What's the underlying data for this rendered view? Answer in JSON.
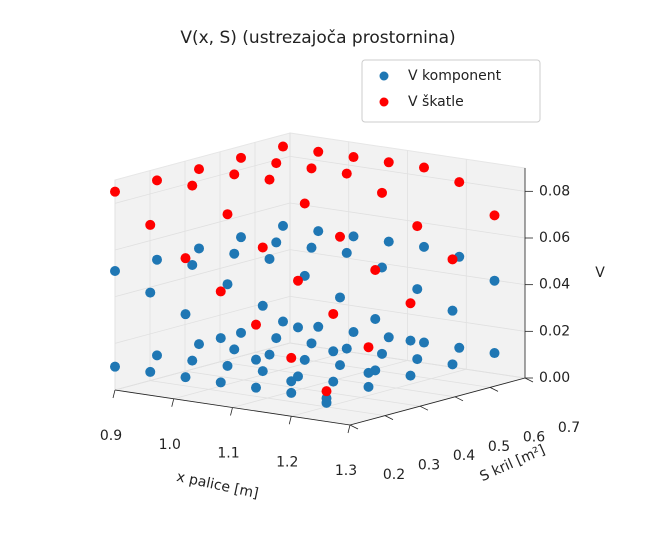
{
  "chart_data": {
    "type": "scatter3d",
    "title": "V(x, S) (ustrezajoča prostornina)",
    "xlabel": "x palice [m]",
    "ylabel": "S kril [m²]",
    "zlabel": "V",
    "xlim": [
      0.9,
      1.3
    ],
    "ylim": [
      0.2,
      0.7
    ],
    "zlim": [
      0,
      0.09
    ],
    "xticks": [
      0.9,
      {
        "value": 1,
        "label": "1.0"
      },
      1.1,
      1.2,
      1.3
    ],
    "yticks": [
      0.2,
      0.3,
      0.4,
      0.5,
      0.6,
      0.7
    ],
    "zticks": [
      {
        "value": 0,
        "label": "0.00"
      },
      {
        "value": 0.02,
        "label": "0.02"
      },
      {
        "value": 0.04,
        "label": "0.04"
      },
      {
        "value": 0.06,
        "label": "0.06"
      },
      {
        "value": 0.08,
        "label": "0.08"
      }
    ],
    "grid": true,
    "legend": "upper right",
    "series": [
      {
        "name": "V komponent",
        "color": "#1f77b4",
        "x": [
          0.9,
          0.9,
          0.9,
          0.9,
          0.9,
          0.96,
          0.96,
          0.96,
          0.96,
          0.96,
          1.02,
          1.02,
          1.02,
          1.02,
          1.02,
          1.08,
          1.08,
          1.08,
          1.08,
          1.08,
          1.14,
          1.14,
          1.14,
          1.14,
          1.14,
          1.2,
          1.2,
          1.2,
          1.2,
          1.2,
          1.26,
          1.26,
          1.26,
          1.26,
          1.26,
          0.9,
          0.9,
          0.9,
          0.9,
          0.9,
          0.96,
          0.96,
          0.96,
          0.96,
          0.96,
          1.02,
          1.02,
          1.02,
          1.02,
          1.02,
          1.08,
          1.08,
          1.08,
          1.08,
          1.08,
          1.14,
          1.14,
          1.14,
          1.14,
          1.14,
          1.2,
          1.2,
          1.2,
          1.2,
          1.2,
          1.26,
          1.26,
          1.26,
          1.26,
          1.26
        ],
        "y": [
          0.2,
          0.32,
          0.44,
          0.56,
          0.68,
          0.2,
          0.32,
          0.44,
          0.56,
          0.68,
          0.2,
          0.32,
          0.44,
          0.56,
          0.68,
          0.2,
          0.32,
          0.44,
          0.56,
          0.68,
          0.2,
          0.32,
          0.44,
          0.56,
          0.68,
          0.2,
          0.32,
          0.44,
          0.56,
          0.68,
          0.2,
          0.32,
          0.44,
          0.56,
          0.68,
          0.2,
          0.32,
          0.44,
          0.56,
          0.68,
          0.2,
          0.32,
          0.44,
          0.56,
          0.68,
          0.2,
          0.32,
          0.44,
          0.56,
          0.68,
          0.2,
          0.32,
          0.44,
          0.56,
          0.68,
          0.2,
          0.32,
          0.44,
          0.56,
          0.68,
          0.2,
          0.32,
          0.44,
          0.56,
          0.68,
          0.2,
          0.32,
          0.44,
          0.56,
          0.68
        ],
        "z": [
          0.01,
          0.01,
          0.01,
          0.01,
          0.01,
          0.01,
          0.01,
          0.01,
          0.01,
          0.01,
          0.01,
          0.01,
          0.01,
          0.01,
          0.01,
          0.01,
          0.01,
          0.01,
          0.01,
          0.01,
          0.01,
          0.01,
          0.01,
          0.01,
          0.01,
          0.01,
          0.01,
          0.01,
          0.01,
          0.01,
          0.01,
          0.01,
          0.01,
          0.01,
          0.01,
          0.051,
          0.051,
          0.051,
          0.051,
          0.051,
          0.044,
          0.051,
          0.051,
          0.051,
          0.051,
          0.037,
          0.045,
          0.051,
          0.051,
          0.051,
          0.029,
          0.038,
          0.046,
          0.051,
          0.051,
          0.022,
          0.031,
          0.039,
          0.047,
          0.051,
          0.015,
          0.023,
          0.032,
          0.04,
          0.049,
          0.008,
          0.016,
          0.025,
          0.033,
          0.041
        ]
      },
      {
        "name": "V škatle",
        "color": "#ff0000",
        "x": [
          0.9,
          0.9,
          0.9,
          0.9,
          0.9,
          0.96,
          0.96,
          0.96,
          0.96,
          0.96,
          1.02,
          1.02,
          1.02,
          1.02,
          1.02,
          1.08,
          1.08,
          1.08,
          1.08,
          1.08,
          1.14,
          1.14,
          1.14,
          1.14,
          1.14,
          1.2,
          1.2,
          1.2,
          1.2,
          1.2,
          1.26,
          1.26,
          1.26,
          1.26,
          1.26
        ],
        "y": [
          0.2,
          0.32,
          0.44,
          0.56,
          0.68,
          0.2,
          0.32,
          0.44,
          0.56,
          0.68,
          0.2,
          0.32,
          0.44,
          0.56,
          0.68,
          0.2,
          0.32,
          0.44,
          0.56,
          0.68,
          0.2,
          0.32,
          0.44,
          0.56,
          0.68,
          0.2,
          0.32,
          0.44,
          0.56,
          0.68,
          0.2,
          0.32,
          0.44,
          0.56,
          0.68
        ],
        "z": [
          0.085,
          0.085,
          0.085,
          0.085,
          0.085,
          0.073,
          0.085,
          0.085,
          0.085,
          0.085,
          0.061,
          0.075,
          0.085,
          0.085,
          0.085,
          0.049,
          0.063,
          0.077,
          0.085,
          0.085,
          0.037,
          0.051,
          0.065,
          0.079,
          0.085,
          0.025,
          0.039,
          0.053,
          0.067,
          0.081,
          0.013,
          0.027,
          0.041,
          0.055,
          0.069
        ]
      }
    ]
  }
}
